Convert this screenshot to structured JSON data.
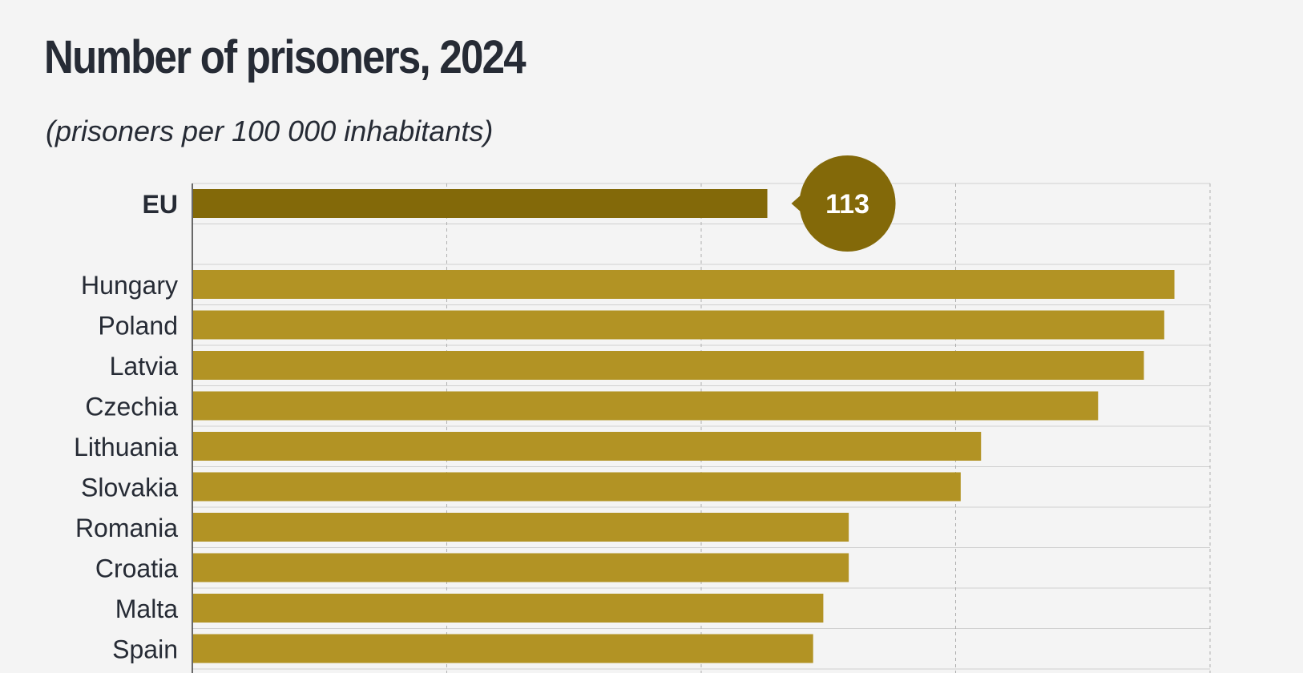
{
  "chart_data": {
    "type": "bar",
    "orientation": "horizontal",
    "title": "Number of prisoners, 2024",
    "subtitle": "(prisoners per 100 000 inhabitants)",
    "categories": [
      "EU",
      "Hungary",
      "Poland",
      "Latvia",
      "Czechia",
      "Lithuania",
      "Slovakia",
      "Romania",
      "Croatia",
      "Malta",
      "Spain"
    ],
    "values": [
      113,
      193,
      191,
      187,
      178,
      155,
      151,
      129,
      129,
      124,
      122
    ],
    "highlight": {
      "category": "EU",
      "label": "113",
      "color": "#836909"
    },
    "bar_color": "#b29324",
    "xlim": [
      0,
      200
    ],
    "grid": true,
    "legend": "none"
  }
}
